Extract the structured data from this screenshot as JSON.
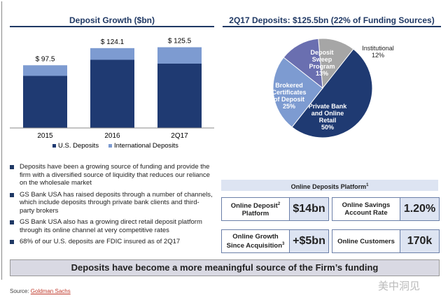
{
  "chart_data": [
    {
      "type": "bar",
      "title": "Deposit Growth ($bn)",
      "categories": [
        "2015",
        "2016",
        "2Q17"
      ],
      "series": [
        {
          "name": "U.S. Deposits",
          "values": [
            81,
            106,
            100
          ],
          "color": "#1f3a72"
        },
        {
          "name": "International Deposits",
          "values": [
            16.5,
            18.1,
            25.5
          ],
          "color": "#7d9bd1"
        }
      ],
      "data_labels": [
        "$ 97.5",
        "$ 124.1",
        "$ 125.5"
      ],
      "totals": [
        97.5,
        124.1,
        125.5
      ],
      "legend": "bottom"
    },
    {
      "type": "pie",
      "title": "2Q17 Deposits: $125.5bn (22% of Funding Sources)",
      "slices": [
        {
          "label": "Institutional",
          "pct": "12%",
          "value": 12,
          "color": "#a6a6a6"
        },
        {
          "label": "Private Bank and Online Retail",
          "pct": "50%",
          "value": 50,
          "color": "#1f3a72"
        },
        {
          "label": "Brokered Certificates of Deposit",
          "pct": "25%",
          "value": 25,
          "color": "#7d9bd1"
        },
        {
          "label": "Deposit Sweep Program",
          "pct": "13%",
          "value": 13,
          "color": "#6a6fb0"
        }
      ]
    }
  ],
  "bullets": [
    "Deposits have been a growing source of funding and provide the firm with a diversified source of liquidity that reduces our reliance on the wholesale market",
    "GS Bank USA has raised deposits through a number of channels, which include deposits through private bank clients and third-party brokers",
    "GS Bank USA also has a growing direct retail deposit platform through its online channel at very competitive rates",
    "68% of our U.S. deposits are FDIC insured as of 2Q17"
  ],
  "platform": {
    "title": "Online Deposits Platform",
    "title_sup": "1",
    "boxes": [
      {
        "label": "Online Deposit",
        "sup": "2",
        "label2": "Platform",
        "value": "$14bn"
      },
      {
        "label": "Online Savings",
        "sup": "",
        "label2": "Account Rate",
        "value": "1.20%"
      },
      {
        "label": "Online Growth",
        "sup": "",
        "label2": "Since Acquisition",
        "sup2": "3",
        "value": "+$5bn"
      },
      {
        "label": "Online Customers",
        "sup": "",
        "label2": "",
        "value": "170k"
      }
    ]
  },
  "banner": "Deposits have become a more meaningful source of the Firm’s funding",
  "source": {
    "prefix": "Source: ",
    "link": "Goldman Sachs"
  },
  "watermark": "美中洞见"
}
